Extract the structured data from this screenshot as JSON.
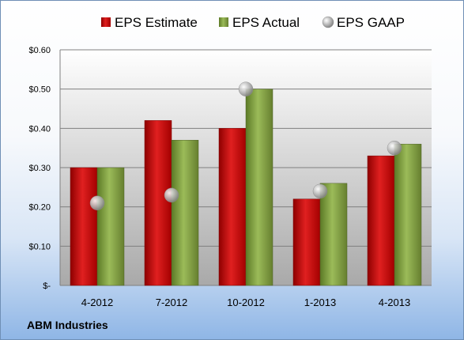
{
  "company": "ABM Industries",
  "chart_data": {
    "type": "bar",
    "categories": [
      "4-2012",
      "7-2012",
      "10-2012",
      "1-2013",
      "4-2013"
    ],
    "series": [
      {
        "name": "EPS Estimate",
        "type": "bar",
        "color": "#c00000",
        "values": [
          0.3,
          0.42,
          0.4,
          0.22,
          0.33
        ]
      },
      {
        "name": "EPS Actual",
        "type": "bar",
        "color": "#77933c",
        "values": [
          0.3,
          0.37,
          0.5,
          0.26,
          0.36
        ]
      },
      {
        "name": "EPS GAAP",
        "type": "scatter",
        "color": "#a6a6a6",
        "values": [
          0.21,
          0.23,
          0.5,
          0.24,
          0.35
        ]
      }
    ],
    "ylim": [
      0,
      0.6
    ],
    "yticks": [
      0,
      0.1,
      0.2,
      0.3,
      0.4,
      0.5,
      0.6
    ],
    "ytick_labels": [
      "$-",
      "$0.10",
      "$0.20",
      "$0.30",
      "$0.40",
      "$0.50",
      "$0.60"
    ],
    "grid": true,
    "legend_position": "top"
  }
}
